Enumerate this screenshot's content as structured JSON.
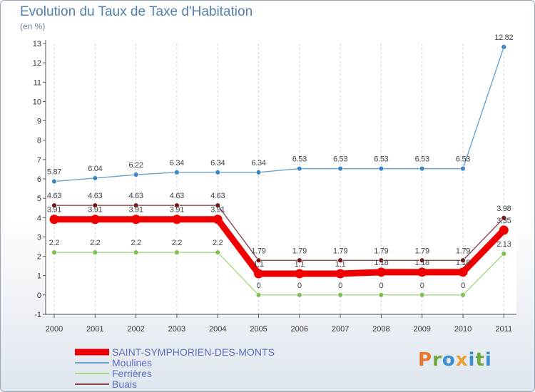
{
  "title": "Evolution du Taux de Taxe d'Habitation",
  "subtitle": "(en %)",
  "logo": {
    "text": "Proxiti",
    "colors": [
      "#e8772e",
      "#6cab3a",
      "#3b8fd1",
      "#e8a22e"
    ]
  },
  "chart_data": {
    "type": "line",
    "title": "Evolution du Taux de Taxe d'Habitation",
    "ylabel": "(en %)",
    "xlabel": "",
    "ylim": [
      -1,
      13
    ],
    "yticks": [
      -1,
      0,
      1,
      2,
      3,
      4,
      5,
      6,
      7,
      8,
      9,
      10,
      11,
      12,
      13
    ],
    "grid": "vertical",
    "legend_position": "bottom-left",
    "categories": [
      "2000",
      "2001",
      "2002",
      "2003",
      "2004",
      "2005",
      "2006",
      "2007",
      "2008",
      "2009",
      "2010",
      "2011"
    ],
    "series": [
      {
        "name": "SAINT-SYMPHORIEN-DES-MONTS",
        "color": "#ee0000",
        "values": [
          3.91,
          3.91,
          3.91,
          3.91,
          3.91,
          1.1,
          1.1,
          1.1,
          1.18,
          1.18,
          1.18,
          3.35
        ],
        "labels": [
          "3.91",
          "3.91",
          "3.91",
          "3.91",
          "3.91",
          "1.1",
          "1.1",
          "1.1",
          "1.18",
          "1.18",
          "1.18",
          "3.35"
        ]
      },
      {
        "name": "Moulines",
        "color": "#6aa2d1",
        "point_color": "#3d87c4",
        "values": [
          5.87,
          6.04,
          6.22,
          6.34,
          6.34,
          6.34,
          6.53,
          6.53,
          6.53,
          6.53,
          6.53,
          12.82
        ],
        "labels": [
          "5.87",
          "6.04",
          "6.22",
          "6.34",
          "6.34",
          "6.34",
          "6.53",
          "6.53",
          "6.53",
          "6.53",
          "6.53",
          "12.82"
        ]
      },
      {
        "name": "Ferrières",
        "color": "#a6da7e",
        "point_color": "#7cc34e",
        "values": [
          2.2,
          2.2,
          2.2,
          2.2,
          2.2,
          0,
          0,
          0,
          0,
          0,
          0,
          2.13
        ],
        "labels": [
          "2.2",
          "2.2",
          "2.2",
          "2.2",
          "2.2",
          "0",
          "0",
          "0",
          "0",
          "0",
          "0",
          "2.13"
        ]
      },
      {
        "name": "Buais",
        "color": "#8e4b52",
        "point_color": "#6f1a1a",
        "values": [
          4.63,
          4.63,
          4.63,
          4.63,
          4.63,
          1.79,
          1.79,
          1.79,
          1.79,
          1.79,
          1.79,
          3.98
        ],
        "labels": [
          "4.63",
          "4.63",
          "4.63",
          "4.63",
          "4.63",
          "1.79",
          "1.79",
          "1.79",
          "1.79",
          "1.79",
          "1.79",
          "3.98"
        ]
      }
    ]
  }
}
